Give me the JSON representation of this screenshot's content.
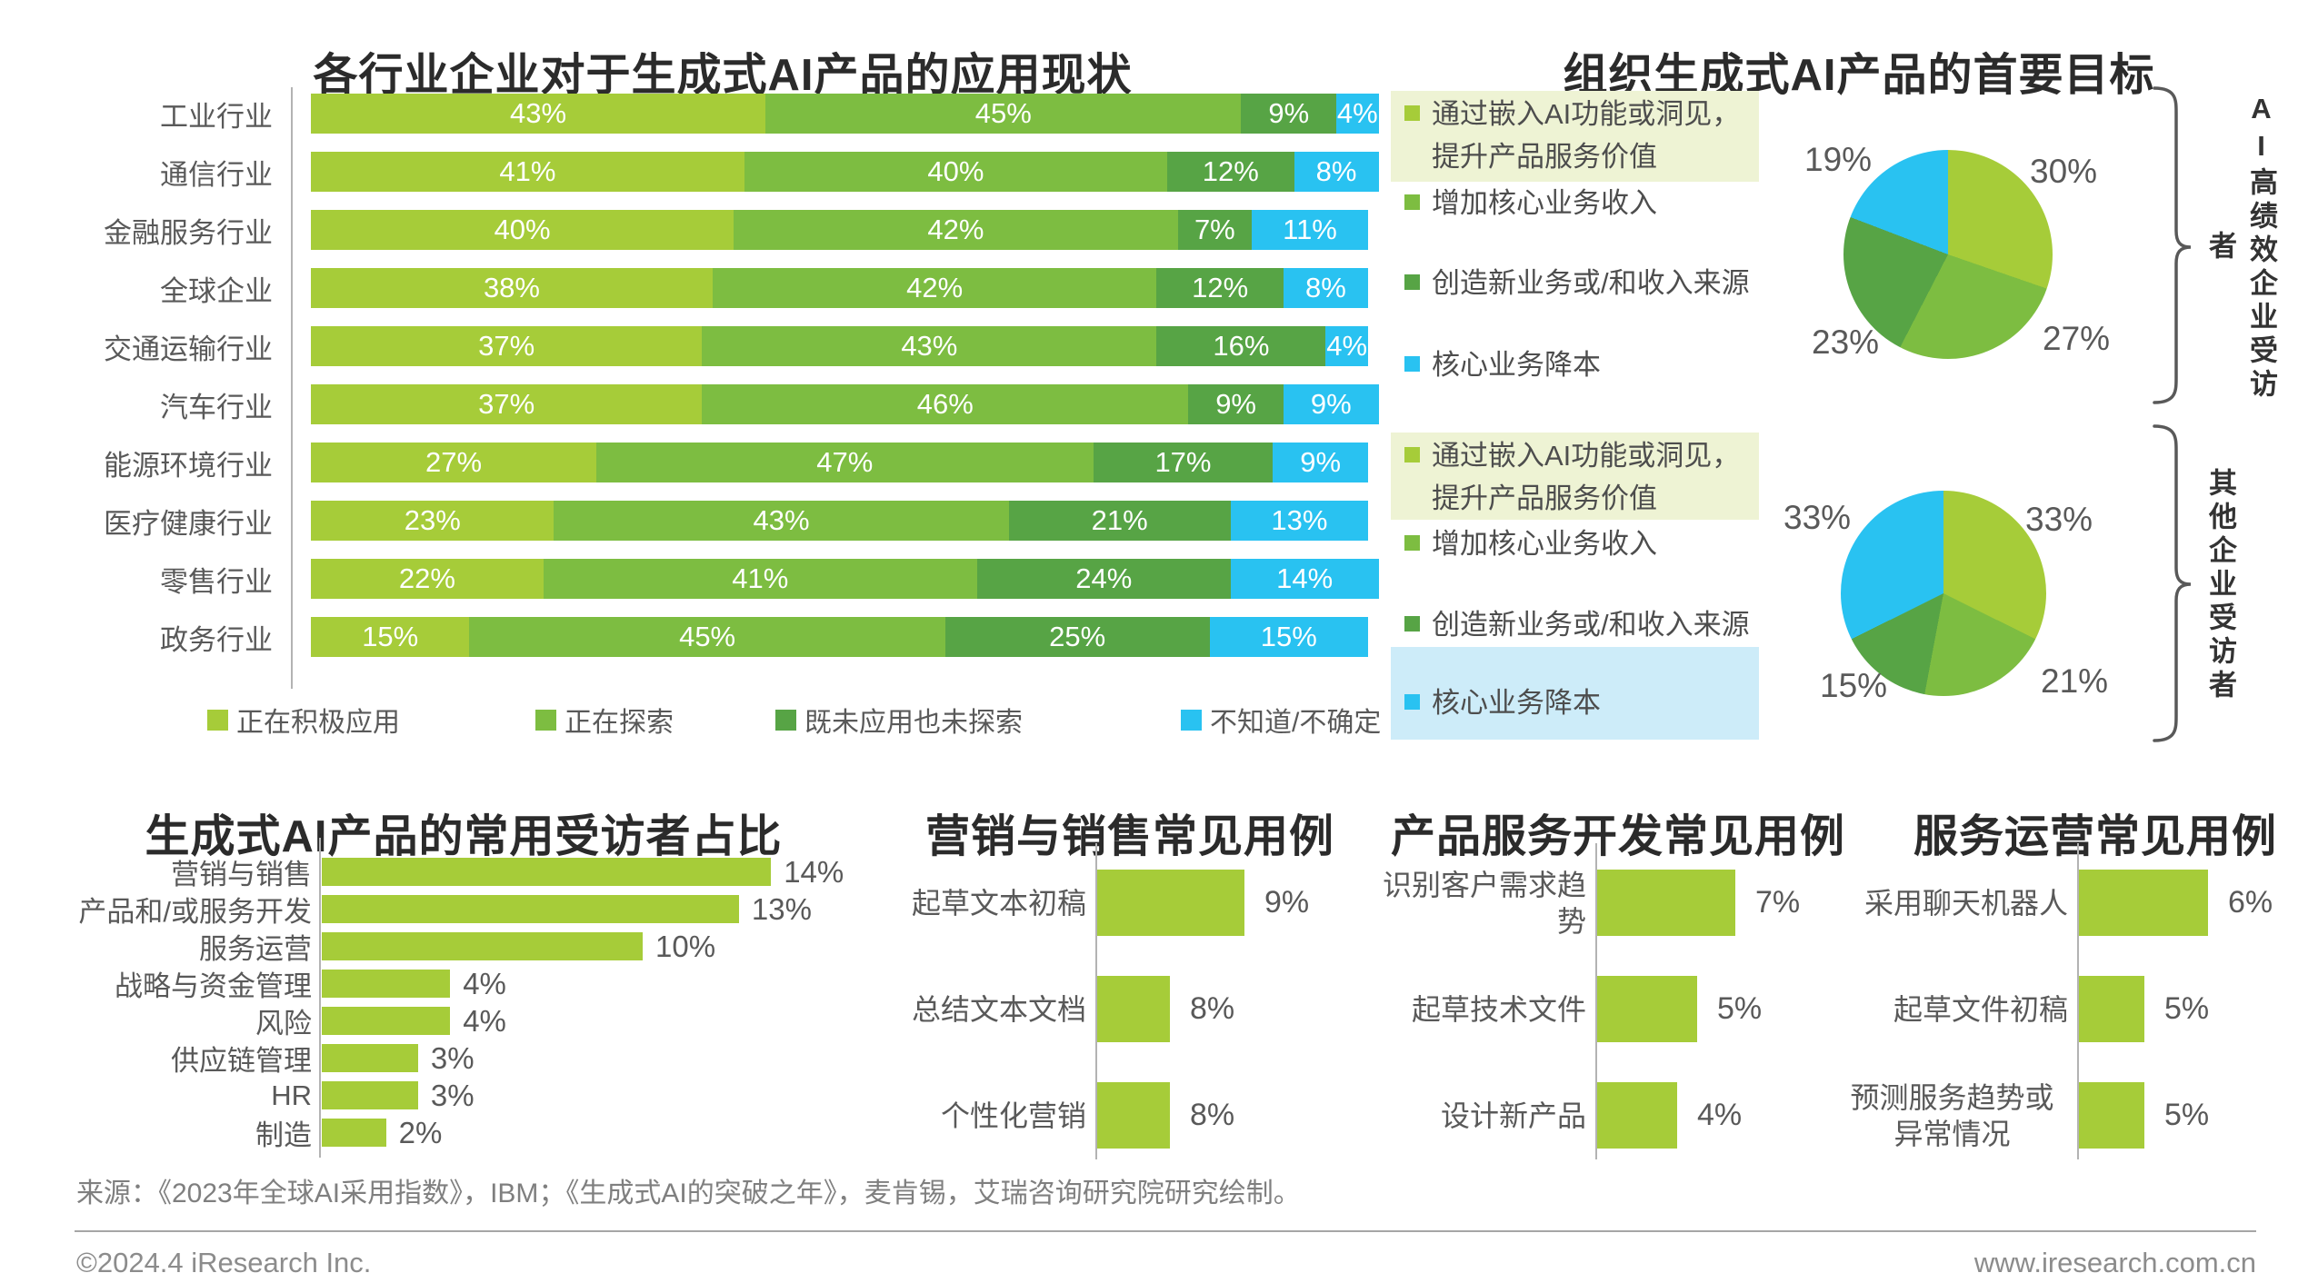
{
  "report": {
    "source_note": "来源：《2023年全球AI采用指数》，IBM；《生成式AI的突破之年》，麦肯锡，艾瑞咨询研究院研究绘制。",
    "footer": {
      "left": "©2024.4 iResearch Inc.",
      "right": "www.iresearch.com.cn"
    }
  },
  "colors": {
    "series": [
      "#a6cc39",
      "#7dbd41",
      "#57a445",
      "#29c2f1"
    ],
    "title_text": "#2b2b2b",
    "label_text": "#595959",
    "highlight_green": "#eef3d4",
    "highlight_cyan": "#cdecf9"
  },
  "chart_data": [
    {
      "id": "industry_adoption",
      "type": "bar",
      "variant": "stacked-horizontal",
      "title": "各行业企业对于生成式AI产品的应用现状",
      "unit": "%",
      "legend": [
        "正在积极应用",
        "正在探索",
        "既未应用也未探索",
        "不知道/不确定"
      ],
      "legend_position": "bottom",
      "categories": [
        "工业行业",
        "通信行业",
        "金融服务行业",
        "全球企业",
        "交通运输行业",
        "汽车行业",
        "能源环境行业",
        "医疗健康行业",
        "零售行业",
        "政务行业"
      ],
      "series": [
        {
          "name": "正在积极应用",
          "values": [
            43,
            41,
            40,
            38,
            37,
            37,
            27,
            23,
            22,
            15
          ]
        },
        {
          "name": "正在探索",
          "values": [
            45,
            40,
            42,
            42,
            43,
            46,
            47,
            43,
            41,
            45
          ]
        },
        {
          "name": "既未应用也未探索",
          "values": [
            9,
            12,
            7,
            12,
            16,
            9,
            17,
            21,
            24,
            25
          ]
        },
        {
          "name": "不知道/不确定",
          "values": [
            4,
            8,
            11,
            8,
            4,
            9,
            9,
            13,
            14,
            15
          ]
        }
      ]
    },
    {
      "id": "primary_goals",
      "type": "pie",
      "title": "组织生成式AI产品的首要目标",
      "unit": "%",
      "legend": [
        "通过嵌入AI功能或洞见，提升产品服务价值",
        "增加核心业务收入",
        "创造新业务或/和收入来源",
        "核心业务降本"
      ],
      "pies": [
        {
          "group": "AI高绩效企业受访者",
          "values": [
            30,
            27,
            23,
            19
          ]
        },
        {
          "group": "其他企业受访者",
          "values": [
            33,
            21,
            15,
            33
          ]
        }
      ]
    },
    {
      "id": "function_share",
      "type": "bar",
      "title": "生成式AI产品的常用受访者占比",
      "unit": "%",
      "categories": [
        "营销与销售",
        "产品和/或服务开发",
        "服务运营",
        "战略与资金管理",
        "风险",
        "供应链管理",
        "HR",
        "制造"
      ],
      "values": [
        14,
        13,
        10,
        4,
        4,
        3,
        3,
        2
      ]
    },
    {
      "id": "marketing_use_cases",
      "type": "bar",
      "title": "营销与销售常见用例",
      "unit": "%",
      "categories": [
        "起草文本初稿",
        "总结文本文档",
        "个性化营销"
      ],
      "values": [
        9,
        8,
        8
      ]
    },
    {
      "id": "product_dev_use_cases",
      "type": "bar",
      "title": "产品服务开发常见用例",
      "unit": "%",
      "categories": [
        "识别客户需求趋势",
        "起草技术文件",
        "设计新产品"
      ],
      "values": [
        7,
        5,
        4
      ]
    },
    {
      "id": "service_ops_use_cases",
      "type": "bar",
      "title": "服务运营常见用例",
      "unit": "%",
      "categories": [
        "采用聊天机器人",
        "起草文件初稿",
        "预测服务趋势或异常情况"
      ],
      "values": [
        6,
        5,
        5
      ]
    }
  ]
}
